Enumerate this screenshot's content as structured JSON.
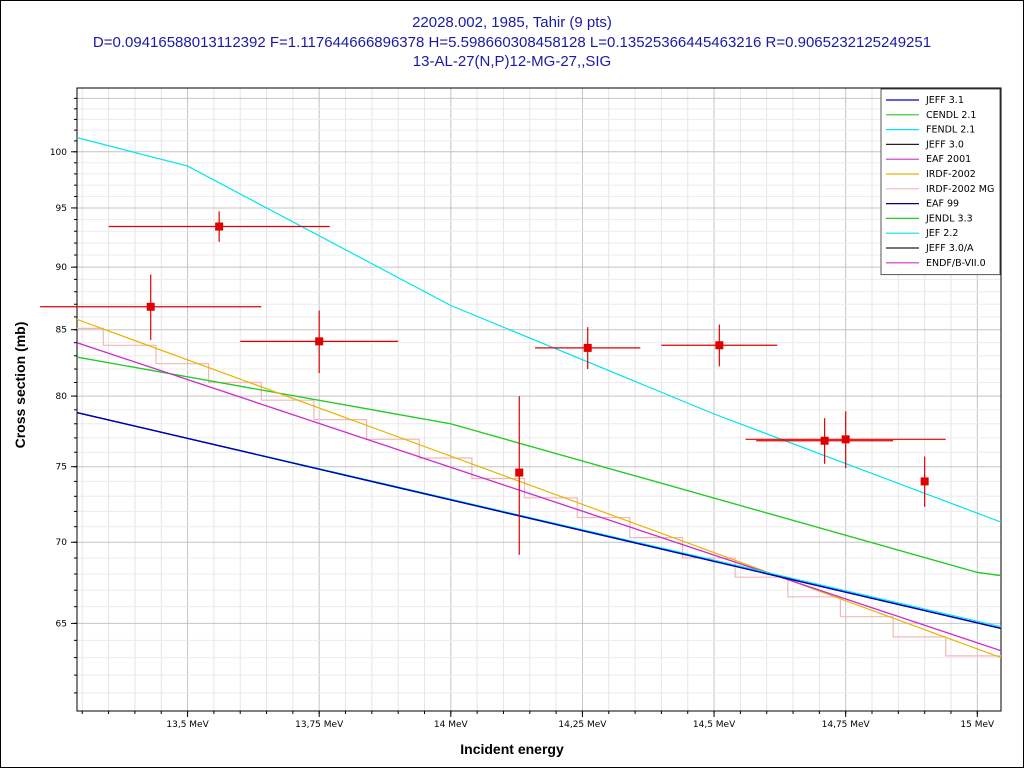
{
  "chart_data": {
    "type": "line",
    "title": "22028.002, 1985, Tahir (9 pts)",
    "subtitle": "D=0.09416588013112392 F=1.117644666896378 H=5.598660308458128 L=0.13525366445463216 R=0.9065232125249251",
    "subtitle2": "13-AL-27(N,P)12-MG-27,,SIG",
    "xlabel": "Incident energy",
    "ylabel": "Cross section (mb)",
    "xlim": [
      13.29,
      15.045
    ],
    "ylim": [
      60.0,
      106.0
    ],
    "y_scale": "log",
    "grid": true,
    "legend_position": "top-right",
    "x_ticks": [
      {
        "value": 13.5,
        "label": "13,5 MeV"
      },
      {
        "value": 13.75,
        "label": "13,75 MeV"
      },
      {
        "value": 14.0,
        "label": "14 MeV"
      },
      {
        "value": 14.25,
        "label": "14,25 MeV"
      },
      {
        "value": 14.5,
        "label": "14,5 MeV"
      },
      {
        "value": 14.75,
        "label": "14,75 MeV"
      },
      {
        "value": 15.0,
        "label": "15 MeV"
      }
    ],
    "y_ticks": [
      {
        "value": 65,
        "label": "65"
      },
      {
        "value": 70,
        "label": "70"
      },
      {
        "value": 75,
        "label": "75"
      },
      {
        "value": 80,
        "label": "80"
      },
      {
        "value": 85,
        "label": "85"
      },
      {
        "value": 90,
        "label": "90"
      },
      {
        "value": 95,
        "label": "95"
      },
      {
        "value": 100,
        "label": "100"
      }
    ],
    "series": [
      {
        "name": "JEFF 3.1",
        "color": "#0000c8",
        "x": [
          13.29,
          15.045
        ],
        "y": [
          78.8,
          64.7
        ]
      },
      {
        "name": "CENDL 2.1",
        "color": "#22cc22",
        "x": [
          13.29,
          14.0,
          15.0,
          15.045
        ],
        "y": [
          82.9,
          78.0,
          68.1,
          67.9
        ]
      },
      {
        "name": "FENDL 2.1",
        "color": "#00e5ee",
        "x": [
          13.29,
          13.5,
          14.0,
          14.5,
          15.045
        ],
        "y": [
          101.3,
          98.7,
          86.9,
          78.7,
          71.3
        ]
      },
      {
        "name": "JEFF 3.0",
        "color": "#222222",
        "x": [
          13.29,
          15.045
        ],
        "y": [
          78.8,
          64.7
        ]
      },
      {
        "name": "EAF 2001",
        "color": "#cc33cc",
        "x": [
          13.29,
          15.045
        ],
        "y": [
          84.0,
          63.4
        ]
      },
      {
        "name": "IRDF-2002",
        "color": "#e8b400",
        "x": [
          13.29,
          15.045
        ],
        "y": [
          85.8,
          63.0
        ]
      },
      {
        "name": "IRDF-2002 MG",
        "color": "#f2b8b8",
        "step": true,
        "x": [
          13.29,
          13.34,
          13.34,
          13.39,
          13.39,
          13.44,
          13.44,
          13.49,
          13.49,
          13.54,
          13.54,
          13.59,
          13.59,
          13.64,
          13.64,
          13.69,
          13.69,
          13.74,
          13.74,
          13.79,
          13.79,
          13.84,
          13.84,
          13.89,
          13.89,
          13.94,
          13.94,
          13.99,
          13.99,
          14.04,
          14.04,
          14.09,
          14.09,
          14.14,
          14.14,
          14.19,
          14.19,
          14.24,
          14.24,
          14.29,
          14.29,
          14.34,
          14.34,
          14.39,
          14.39,
          14.44,
          14.44,
          14.49,
          14.49,
          14.54,
          14.54,
          14.59,
          14.59,
          14.64,
          14.64,
          14.69,
          14.69,
          14.74,
          14.74,
          14.79,
          14.79,
          14.84,
          14.84,
          14.89,
          14.89,
          14.94,
          14.94,
          14.99,
          14.99,
          15.045
        ],
        "y": [
          85.1,
          85.1,
          83.8,
          83.8,
          83.8,
          83.8,
          82.4,
          82.4,
          82.4,
          82.4,
          81.0,
          81.0,
          81.0,
          81.0,
          79.7,
          79.7,
          79.7,
          79.7,
          78.3,
          78.3,
          78.3,
          78.3,
          76.9,
          76.9,
          76.9,
          76.9,
          75.6,
          75.6,
          75.6,
          75.6,
          74.2,
          74.2,
          74.2,
          74.2,
          72.9,
          72.9,
          72.9,
          72.9,
          71.6,
          71.6,
          71.6,
          71.6,
          70.3,
          70.3,
          70.3,
          70.3,
          69.0,
          69.0,
          69.0,
          69.0,
          67.8,
          67.8,
          67.8,
          67.8,
          66.6,
          66.6,
          66.6,
          66.6,
          65.4,
          65.4,
          65.4,
          65.4,
          64.2,
          64.2,
          64.2,
          64.2,
          63.1,
          63.1,
          63.1,
          63.1
        ]
      },
      {
        "name": "EAF 99",
        "color": "#00008b",
        "x": [
          13.29,
          15.045
        ],
        "y": [
          78.8,
          64.7
        ]
      },
      {
        "name": "JENDL 3.3",
        "color": "#22cc22",
        "x": [
          13.29,
          14.0,
          15.0,
          15.045
        ],
        "y": [
          82.9,
          78.0,
          68.1,
          67.9
        ]
      },
      {
        "name": "JEF 2.2",
        "color": "#00e5ee",
        "x": [
          13.29,
          15.045
        ],
        "y": [
          78.8,
          64.8
        ]
      },
      {
        "name": "JEFF 3.0/A",
        "color": "#222222",
        "x": [
          13.29,
          15.045
        ],
        "y": [
          78.8,
          64.7
        ]
      },
      {
        "name": "ENDF/B-VII.0",
        "color": "#cc33cc",
        "x": [
          13.29,
          15.045
        ],
        "y": [
          84.0,
          63.4
        ]
      }
    ],
    "experimental_points": {
      "color": "#e00000",
      "points": [
        {
          "x": 13.43,
          "y": 86.8,
          "xerr": 0.21,
          "yerr": 2.6
        },
        {
          "x": 13.56,
          "y": 93.4,
          "xerr": 0.21,
          "yerr": 1.3
        },
        {
          "x": 13.75,
          "y": 84.1,
          "xerr": 0.15,
          "yerr": 2.4
        },
        {
          "x": 14.13,
          "y": 74.6,
          "xerr": 0.0,
          "yerr": 5.4
        },
        {
          "x": 14.26,
          "y": 83.6,
          "xerr": 0.1,
          "yerr": 1.6
        },
        {
          "x": 14.51,
          "y": 83.8,
          "xerr": 0.11,
          "yerr": 1.6
        },
        {
          "x": 14.71,
          "y": 76.8,
          "xerr": 0.13,
          "yerr": 1.6
        },
        {
          "x": 14.75,
          "y": 76.9,
          "xerr": 0.19,
          "yerr": 2.0
        },
        {
          "x": 14.9,
          "y": 74.0,
          "xerr": 0.0,
          "yerr": 1.7
        }
      ]
    }
  }
}
